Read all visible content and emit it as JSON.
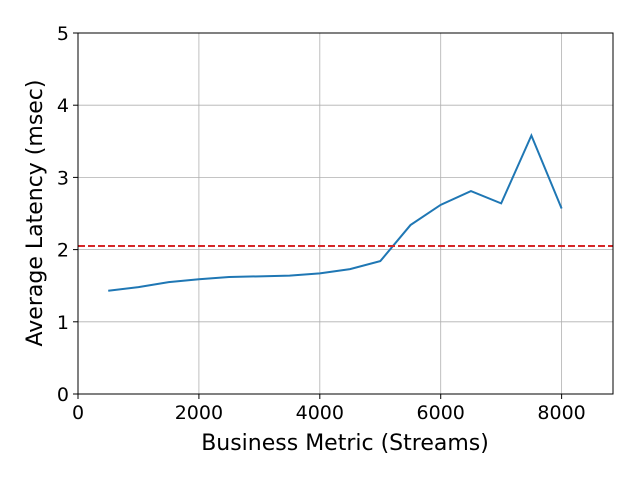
{
  "chart_data": {
    "type": "line",
    "x_label": "Business Metric (Streams)",
    "y_label": "Average Latency (msec)",
    "x": [
      500,
      1000,
      1500,
      2000,
      2500,
      3000,
      3500,
      4000,
      4500,
      5000,
      5500,
      6000,
      6500,
      7000,
      7500,
      8000
    ],
    "series": [
      {
        "color": "#1f77b4",
        "values": [
          1.43,
          1.48,
          1.55,
          1.59,
          1.62,
          1.63,
          1.64,
          1.67,
          1.73,
          1.84,
          2.34,
          2.62,
          2.81,
          2.64,
          3.58,
          2.57
        ]
      }
    ],
    "reference_line": {
      "value": 2.05,
      "color": "#d62728"
    },
    "xlim": [
      0,
      8850
    ],
    "xticks": [
      0,
      2000,
      4000,
      6000,
      8000
    ],
    "ylim": [
      0,
      5
    ],
    "yticks": [
      0,
      1,
      2,
      3,
      4,
      5
    ],
    "grid": true
  }
}
